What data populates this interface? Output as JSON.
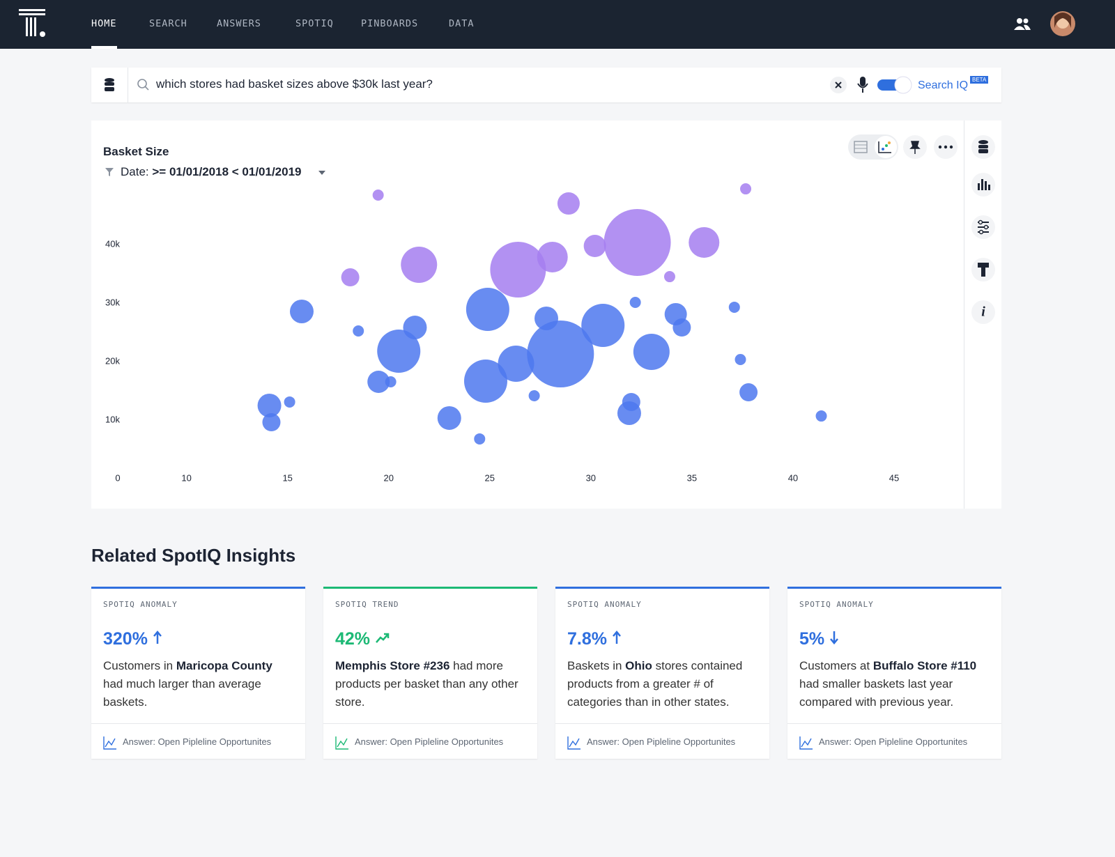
{
  "nav": {
    "items": [
      "HOME",
      "SEARCH",
      "ANSWERS",
      "SPOTIQ",
      "PINBOARDS",
      "DATA"
    ]
  },
  "search": {
    "query": "which stores had basket sizes above $30k last year?",
    "toggle_label": "Search IQ",
    "badge": "BETA"
  },
  "chart_data": {
    "type": "bubble",
    "title": "Basket Size",
    "filter_label": "Date:",
    "filter_value": ">= 01/01/2018 < 01/01/2019",
    "origin_label": "0",
    "xlim": [
      6.6,
      48
    ],
    "xticks": [
      10,
      15,
      20,
      25,
      30,
      35,
      40,
      45
    ],
    "ylim": [
      0,
      50000
    ],
    "yticks": [
      {
        "value": 10000,
        "label": "10k"
      },
      {
        "value": 20000,
        "label": "20k"
      },
      {
        "value": 30000,
        "label": "30k"
      },
      {
        "value": 40000,
        "label": "40k"
      }
    ],
    "grid": false,
    "series": [
      {
        "color": "#a47ef0",
        "x": [
          19.48,
          28.9,
          37.66,
          18.1,
          21.5,
          26.4,
          28.1,
          30.2,
          32.3,
          35.6,
          33.9
        ],
        "values": [
          48450,
          47020,
          49520,
          34400,
          36550,
          35710,
          37860,
          39760,
          40360,
          40360,
          34520
        ],
        "sizes": [
          8,
          16,
          8,
          13,
          26,
          40,
          22,
          16,
          48,
          22,
          8
        ]
      },
      {
        "color": "#4d78ef",
        "x": [
          15.7,
          18.5,
          21.3,
          20.5,
          19.5,
          20.1,
          14.1,
          14.2,
          15.1,
          23.0,
          24.5,
          24.8,
          24.9,
          26.3,
          27.2,
          27.8,
          28.5,
          30.6,
          32.2,
          33.0,
          32.0,
          31.9,
          34.2,
          34.5,
          37.1,
          37.4,
          37.8,
          41.4
        ],
        "values": [
          28570,
          25240,
          25830,
          21790,
          16550,
          16550,
          12500,
          9640,
          13100,
          10360,
          6790,
          16670,
          28930,
          19640,
          14170,
          27380,
          21310,
          26190,
          30120,
          21670,
          13100,
          11190,
          28100,
          25830,
          29290,
          20360,
          14760,
          10710
        ],
        "sizes": [
          17,
          8,
          17,
          31,
          16,
          8,
          17,
          13,
          8,
          17,
          8,
          31,
          31,
          26,
          8,
          17,
          48,
          31,
          8,
          26,
          13,
          17,
          16,
          13,
          8,
          8,
          13,
          8
        ]
      }
    ]
  },
  "insights": {
    "title": "Related SpotIQ Insights",
    "cards": [
      {
        "kind": "SPOTIQ ANOMALY",
        "metric": "320%",
        "body": [
          {
            "text": "Customers in "
          },
          {
            "text": "Maricopa County"
          },
          {
            "text": " had much larger than average baskets."
          }
        ],
        "footer": "Answer: Open Pipleline Opportunites"
      },
      {
        "kind": "SPOTIQ TREND",
        "metric": "42%",
        "body": [
          {
            "text": "Memphis Store #236"
          },
          {
            "text": " had more products per basket than any other store."
          }
        ],
        "footer": "Answer: Open Pipleline Opportunites"
      },
      {
        "kind": "SPOTIQ ANOMALY",
        "metric": "7.8%",
        "body": [
          {
            "text": "Baskets in "
          },
          {
            "text": "Ohio"
          },
          {
            "text": " stores contained products from a greater # of categories than in other states."
          }
        ],
        "footer": "Answer: Open Pipleline Opportunites"
      },
      {
        "kind": "SPOTIQ ANOMALY",
        "metric": "5%",
        "body": [
          {
            "text": "Customers at "
          },
          {
            "text": "Buffalo Store #110"
          },
          {
            "text": " had smaller baskets last year compared with previous year."
          }
        ],
        "footer": "Answer: Open Pipleline Opportunites"
      }
    ]
  }
}
